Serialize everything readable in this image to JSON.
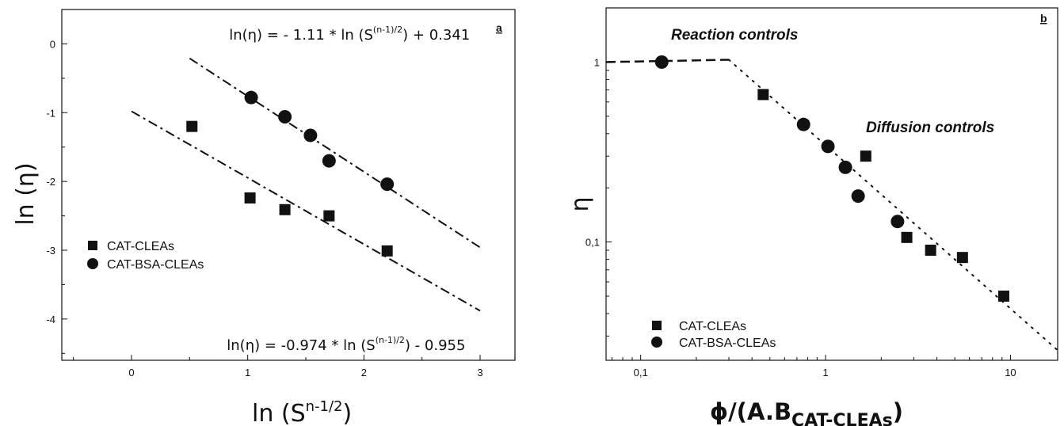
{
  "chart_data": [
    {
      "panel": "a",
      "type": "scatter",
      "panel_label": "a",
      "xlabel": "ln (S",
      "xlabel_sup": "n-1/2",
      "xlabel_close": ")",
      "ylabel": "ln (η)",
      "xlim": [
        -0.6,
        3.3
      ],
      "ylim": [
        -4.6,
        0.5
      ],
      "xticks": [
        0,
        1,
        2,
        3
      ],
      "yticks": [
        0,
        -1,
        -2,
        -3,
        -4
      ],
      "xtick_labels": [
        "0",
        "1",
        "2",
        "3"
      ],
      "ytick_labels": [
        "0",
        "-1",
        "-2",
        "-3",
        "-4"
      ],
      "legend_position": "middle-left",
      "series": [
        {
          "name": "CAT-CLEAs",
          "marker": "square",
          "x": [
            0.52,
            1.02,
            1.32,
            1.7,
            2.2
          ],
          "y": [
            -1.2,
            -2.24,
            -2.41,
            -2.5,
            -3.01
          ]
        },
        {
          "name": "CAT-BSA-CLEAs",
          "marker": "circle",
          "x": [
            1.03,
            1.32,
            1.54,
            1.7,
            2.2
          ],
          "y": [
            -0.78,
            -1.06,
            -1.33,
            -1.7,
            -2.04
          ]
        }
      ],
      "fits": [
        {
          "series": "CAT-BSA-CLEAs",
          "equation_main": "ln(η) = - 1.11 * ln (S",
          "equation_sup": "(n-1)/2",
          "equation_tail": ")  + 0.341",
          "x": [
            0.5,
            3.0
          ],
          "y": [
            -0.21,
            -2.96
          ]
        },
        {
          "series": "CAT-CLEAs",
          "equation_main": "ln(η) = -0.974 * ln (S",
          "equation_sup": "(n-1)/2",
          "equation_tail": ")  - 0.955",
          "x": [
            0.0,
            3.0
          ],
          "y": [
            -0.98,
            -3.88
          ]
        }
      ]
    },
    {
      "panel": "b",
      "type": "scatter",
      "panel_label": "b",
      "xscale": "log",
      "yscale": "log",
      "xlabel_main": "ϕ/(A.B",
      "xlabel_sub": "CAT-CLEAs",
      "xlabel_close": ")",
      "ylabel": "η",
      "xlim": [
        0.065,
        18
      ],
      "ylim": [
        0.022,
        2.0
      ],
      "xticks": [
        0.1,
        1,
        10
      ],
      "yticks": [
        1,
        0.1
      ],
      "xtick_labels": [
        "0,1",
        "1",
        "10"
      ],
      "ytick_labels": [
        "1",
        "0,1"
      ],
      "legend_position": "bottom-left",
      "annotations": [
        "Reaction controls",
        "Diffusion controls"
      ],
      "series": [
        {
          "name": "CAT-CLEAs",
          "marker": "square",
          "x": [
            0.46,
            1.65,
            2.75,
            3.7,
            5.5,
            9.2
          ],
          "y": [
            0.66,
            0.3,
            0.106,
            0.09,
            0.082,
            0.05
          ]
        },
        {
          "name": "CAT-BSA-CLEAs",
          "marker": "circle",
          "x": [
            0.13,
            0.76,
            1.03,
            1.28,
            1.5,
            2.45
          ],
          "y": [
            1.0,
            0.45,
            0.34,
            0.26,
            0.18,
            0.13
          ]
        }
      ],
      "lines": [
        {
          "style": "dashed",
          "x": [
            0.065,
            0.3
          ],
          "y": [
            1.0,
            1.03
          ]
        },
        {
          "style": "dotted",
          "x": [
            0.3,
            18
          ],
          "y": [
            1.03,
            0.025
          ]
        }
      ]
    }
  ]
}
